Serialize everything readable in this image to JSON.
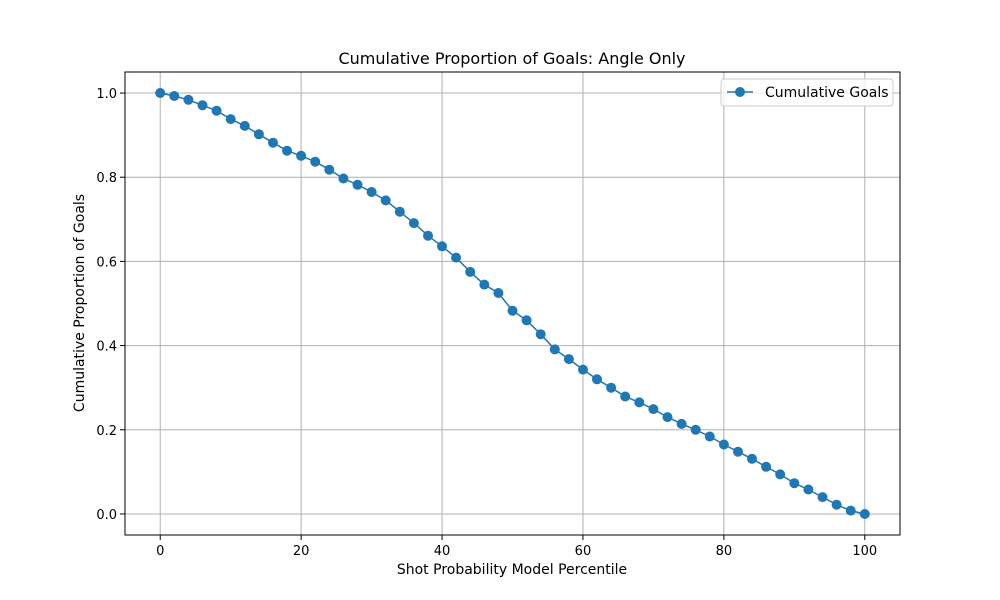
{
  "chart_data": {
    "type": "line",
    "title": "Cumulative Proportion of Goals: Angle Only",
    "xlabel": "Shot Probability Model Percentile",
    "ylabel": "Cumulative Proportion of Goals",
    "xlim": [
      -5,
      105
    ],
    "ylim": [
      -0.05,
      1.05
    ],
    "xticks": [
      0,
      20,
      40,
      60,
      80,
      100
    ],
    "yticks": [
      0.0,
      0.2,
      0.4,
      0.6,
      0.8,
      1.0
    ],
    "xtick_labels": [
      "0",
      "20",
      "40",
      "60",
      "80",
      "100"
    ],
    "ytick_labels": [
      "0.0",
      "0.2",
      "0.4",
      "0.6",
      "0.8",
      "1.0"
    ],
    "grid": true,
    "legend_position": "top-right",
    "series": [
      {
        "name": "Cumulative Goals",
        "color": "#1f77b4",
        "marker": "circle",
        "x": [
          0,
          2,
          4,
          6,
          8,
          10,
          12,
          14,
          16,
          18,
          20,
          22,
          24,
          26,
          28,
          30,
          32,
          34,
          36,
          38,
          40,
          42,
          44,
          46,
          48,
          50,
          52,
          54,
          56,
          58,
          60,
          62,
          64,
          66,
          68,
          70,
          72,
          74,
          76,
          78,
          80,
          82,
          84,
          86,
          88,
          90,
          92,
          94,
          96,
          98,
          100
        ],
        "y": [
          1.0,
          0.993,
          0.984,
          0.971,
          0.958,
          0.938,
          0.922,
          0.902,
          0.882,
          0.863,
          0.851,
          0.837,
          0.818,
          0.797,
          0.782,
          0.765,
          0.745,
          0.718,
          0.691,
          0.661,
          0.636,
          0.609,
          0.575,
          0.545,
          0.525,
          0.483,
          0.46,
          0.427,
          0.391,
          0.368,
          0.343,
          0.32,
          0.3,
          0.279,
          0.265,
          0.249,
          0.23,
          0.214,
          0.2,
          0.184,
          0.165,
          0.148,
          0.131,
          0.112,
          0.094,
          0.073,
          0.058,
          0.04,
          0.022,
          0.008,
          0.0
        ]
      }
    ]
  }
}
